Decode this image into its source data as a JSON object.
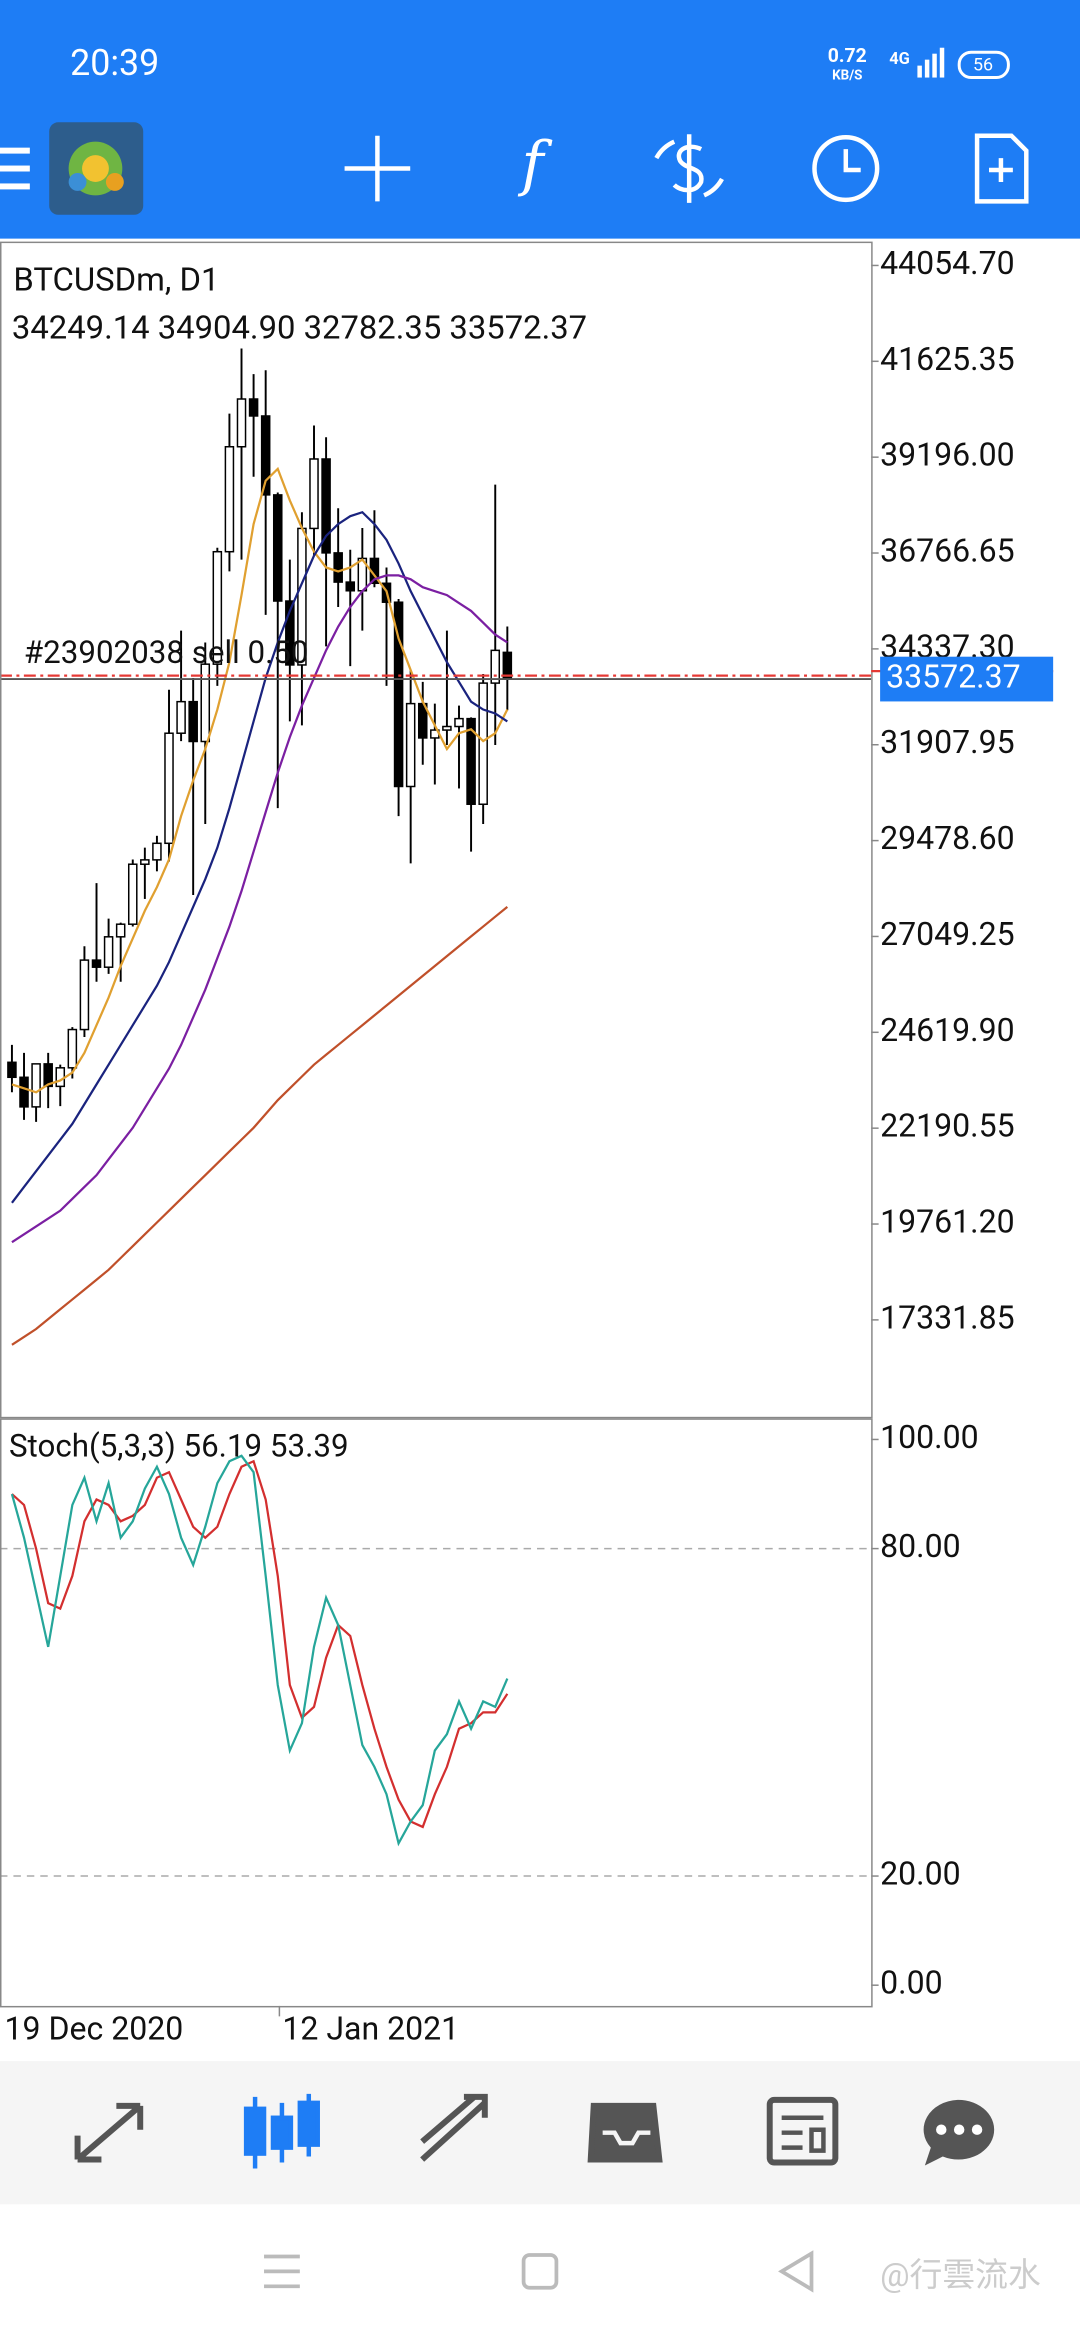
{
  "status_bar": {
    "time": "20:39",
    "net_speed": "0.72",
    "net_unit": "KB/S",
    "network": "4G",
    "battery": "56"
  },
  "chart": {
    "symbol": "BTCUSDm, D1",
    "info": "34249.14 34904.90 32782.35 33572.37",
    "order_label": "#23902038 sell 0.50",
    "stoch_title": "Stoch(5,3,3) 56.19 53.39"
  },
  "chart_data": {
    "type": "candlestick",
    "categories": [
      "19 Dec 2020",
      null,
      null,
      null,
      null,
      null,
      null,
      null,
      null,
      null,
      null,
      null,
      null,
      null,
      null,
      null,
      null,
      null,
      null,
      null,
      null,
      null,
      null,
      "12 Jan 2021",
      null,
      null,
      null,
      null,
      null,
      null,
      null,
      null,
      null,
      null,
      null,
      null,
      null,
      null,
      null,
      null,
      null,
      null
    ],
    "open": [
      23860,
      23480,
      22730,
      23820,
      23250,
      23720,
      24690,
      26450,
      26270,
      27040,
      27360,
      28880,
      28990,
      29410,
      32200,
      33000,
      31990,
      33950,
      36800,
      39460,
      40670,
      40240,
      38240,
      35550,
      33930,
      37390,
      39150,
      36770,
      36030,
      35810,
      36630,
      36000,
      35520,
      30850,
      32950,
      32080,
      32280,
      32370,
      32570,
      30400,
      33470,
      34249.14
    ],
    "high": [
      24300,
      24100,
      23800,
      24100,
      23800,
      24750,
      26800,
      28400,
      27500,
      27400,
      29000,
      29300,
      29600,
      33300,
      34800,
      33600,
      34500,
      36900,
      40300,
      41950,
      41300,
      41400,
      38300,
      36600,
      37800,
      40000,
      39700,
      37900,
      36850,
      37400,
      37850,
      36400,
      35600,
      33800,
      33500,
      32950,
      34800,
      32900,
      32600,
      33700,
      38500,
      34904.9
    ],
    "low": [
      23100,
      22400,
      22350,
      22700,
      22750,
      23450,
      24500,
      25900,
      26100,
      25900,
      27300,
      28000,
      28700,
      28950,
      32000,
      28100,
      29900,
      33400,
      36300,
      36600,
      38700,
      35200,
      30300,
      32500,
      32400,
      36700,
      34400,
      35400,
      33900,
      34800,
      35900,
      33400,
      30100,
      28900,
      31400,
      30900,
      31900,
      30800,
      29200,
      29900,
      31900,
      32782.35
    ],
    "close": [
      23480,
      22730,
      23820,
      23250,
      23720,
      24690,
      26450,
      26270,
      27040,
      27360,
      28880,
      28990,
      29410,
      32200,
      33000,
      31990,
      33950,
      36800,
      39460,
      40670,
      40240,
      38240,
      35550,
      33930,
      37390,
      39150,
      36770,
      36030,
      35810,
      36630,
      36000,
      35520,
      30850,
      32950,
      32080,
      32280,
      32370,
      32570,
      30400,
      33470,
      34300,
      33572.37
    ],
    "up_color": "#ffffff",
    "down_color": "#000000",
    "candle_stroke": "#000000",
    "series": [
      {
        "color": "#e0a030",
        "values": [
          23300,
          23200,
          23100,
          23300,
          23400,
          23600,
          24100,
          24800,
          25500,
          26300,
          27000,
          27700,
          28300,
          29000,
          30100,
          31000,
          31800,
          32800,
          34000,
          35700,
          37500,
          38600,
          38900,
          38100,
          37400,
          36800,
          36400,
          36300,
          36400,
          36600,
          36200,
          35800,
          34600,
          33800,
          33000,
          32400,
          31800,
          32200,
          32300,
          32000,
          32200,
          32800
        ]
      },
      {
        "color": "#1a237e",
        "values": [
          20300,
          20700,
          21100,
          21500,
          21900,
          22300,
          22800,
          23300,
          23800,
          24300,
          24800,
          25300,
          25800,
          26400,
          27100,
          27800,
          28500,
          29300,
          30300,
          31400,
          32500,
          33600,
          34500,
          35300,
          36000,
          36700,
          37200,
          37500,
          37700,
          37800,
          37500,
          37100,
          36500,
          35800,
          35200,
          34600,
          34000,
          33500,
          33000,
          32800,
          32700,
          32500
        ]
      },
      {
        "color": "#7b1fa2",
        "values": [
          19300,
          19500,
          19700,
          19900,
          20100,
          20400,
          20700,
          21000,
          21400,
          21800,
          22200,
          22700,
          23200,
          23700,
          24300,
          25000,
          25700,
          26500,
          27300,
          28200,
          29200,
          30200,
          31200,
          32100,
          32900,
          33600,
          34300,
          34900,
          35400,
          35800,
          36100,
          36200,
          36200,
          36100,
          35900,
          35800,
          35700,
          35500,
          35300,
          35000,
          34700,
          34500
        ]
      },
      {
        "color": "#c0502a",
        "values": [
          16700,
          16900,
          17100,
          17350,
          17600,
          17850,
          18100,
          18350,
          18600,
          18900,
          19200,
          19500,
          19800,
          20100,
          20400,
          20700,
          21000,
          21300,
          21600,
          21900,
          22200,
          22550,
          22900,
          23200,
          23500,
          23800,
          24050,
          24300,
          24550,
          24800,
          25050,
          25300,
          25550,
          25800,
          26050,
          26300,
          26550,
          26800,
          27050,
          27300,
          27550,
          27800
        ]
      }
    ],
    "ylim": [
      14875,
      44659
    ],
    "yticks": [
      {
        "value": 44054.7,
        "label": "44054.70"
      },
      {
        "value": 41625.35,
        "label": "41625.35"
      },
      {
        "value": 39196,
        "label": "39196.00"
      },
      {
        "value": 36766.65,
        "label": "36766.65"
      },
      {
        "value": 34337.3,
        "label": "34337.30"
      },
      {
        "value": 31907.95,
        "label": "31907.95"
      },
      {
        "value": 29478.6,
        "label": "29478.60"
      },
      {
        "value": 27049.25,
        "label": "27049.25"
      },
      {
        "value": 24619.9,
        "label": "24619.90"
      },
      {
        "value": 22190.55,
        "label": "22190.55"
      },
      {
        "value": 19761.2,
        "label": "19761.20"
      },
      {
        "value": 17331.85,
        "label": "17331.85"
      }
    ],
    "order_price": 33660,
    "order_color": "#e53935",
    "current_price": 33572.37,
    "current_price_color": "#1e7df5",
    "stoch": {
      "k": {
        "color": "#26a69a",
        "values": [
          90,
          82,
          72,
          62,
          75,
          88,
          93,
          85,
          92,
          82,
          85,
          91,
          95,
          90,
          82,
          77,
          84,
          92,
          96,
          97,
          94,
          75,
          55,
          43,
          48,
          62,
          71,
          66,
          55,
          44,
          40,
          35,
          26,
          30,
          33,
          43,
          46,
          52,
          47,
          52,
          51,
          56.19
        ]
      },
      "d": {
        "color": "#d32f2f",
        "values": [
          90,
          88,
          80,
          70,
          69,
          75,
          85,
          89,
          88,
          85,
          86,
          88,
          93,
          94,
          89,
          84,
          82,
          84,
          90,
          95,
          96,
          89,
          75,
          55,
          49,
          51,
          60,
          66,
          64,
          55,
          47,
          40,
          34,
          30,
          29,
          35,
          40,
          47,
          48,
          50,
          50,
          53.39
        ]
      },
      "ylim": [
        -3.8,
        103.6
      ],
      "yticks": [
        {
          "value": 100,
          "label": "100.00"
        },
        {
          "value": 80,
          "label": "80.00"
        },
        {
          "value": 20,
          "label": "20.00"
        },
        {
          "value": 0,
          "label": "0.00"
        }
      ],
      "levels": [
        80,
        20
      ]
    }
  },
  "watermark": "@行雲流水"
}
